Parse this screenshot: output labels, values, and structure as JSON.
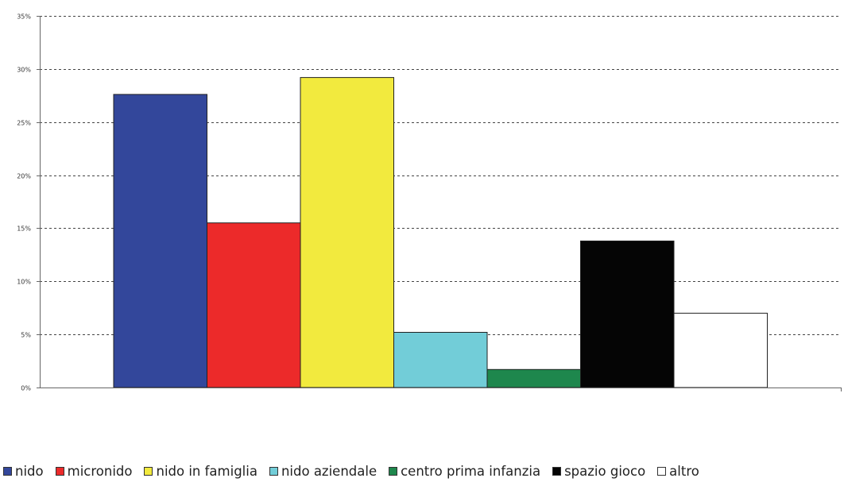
{
  "chart_data": {
    "type": "bar",
    "title": "",
    "xlabel": "",
    "ylabel": "",
    "ylim": [
      0,
      35
    ],
    "ytick_values": [
      0,
      5,
      10,
      15,
      20,
      25,
      30,
      35
    ],
    "ytick_labels": [
      "0%",
      "5%",
      "10%",
      "15%",
      "20%",
      "25%",
      "30%",
      "35%"
    ],
    "grid": true,
    "legend_position": "bottom",
    "series": [
      {
        "name": "nido",
        "value": 27.6,
        "color": "#33479b"
      },
      {
        "name": "micronido",
        "value": 15.5,
        "color": "#ec2a2a"
      },
      {
        "name": "nido in famiglia",
        "value": 29.2,
        "color": "#f2ea3e"
      },
      {
        "name": "nido aziendale",
        "value": 5.2,
        "color": "#72cdd8"
      },
      {
        "name": "centro prima infanzia",
        "value": 1.7,
        "color": "#1e874d"
      },
      {
        "name": "spazio gioco",
        "value": 13.8,
        "color": "#050505"
      },
      {
        "name": "altro",
        "value": 7.0,
        "color": "#ffffff"
      }
    ]
  }
}
